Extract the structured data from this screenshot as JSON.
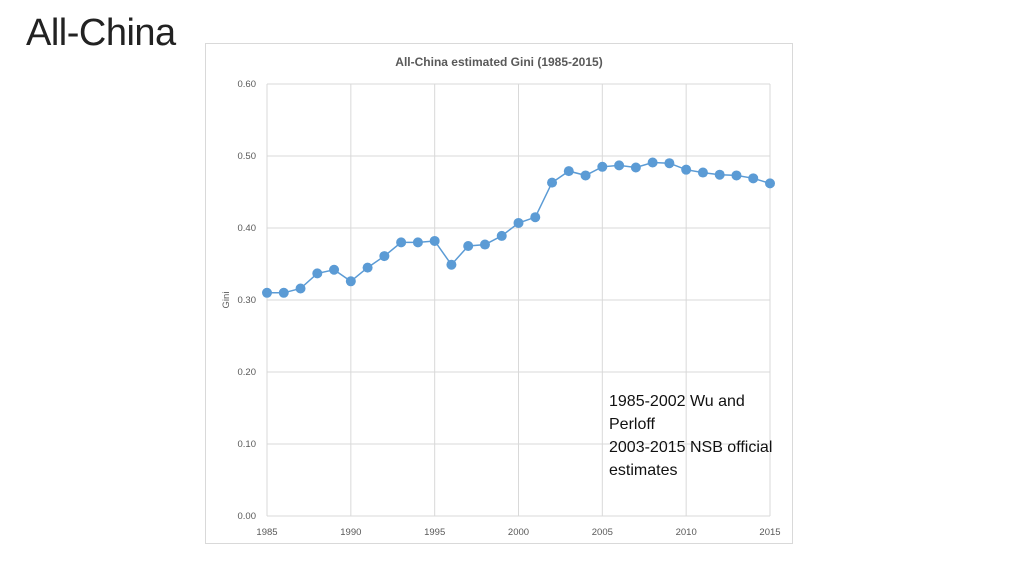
{
  "slide": {
    "title": "All-China"
  },
  "note": {
    "line1": "1985-2002 Wu and\nPerloff",
    "line2": "2003-2015 NSB official\nestimates"
  },
  "chart_data": {
    "type": "line",
    "title": "All-China estimated Gini  (1985-2015)",
    "xlabel": "",
    "ylabel": "Gini",
    "xlim": [
      1985,
      2015
    ],
    "ylim": [
      0,
      0.6
    ],
    "xticks": [
      "1985",
      "1990",
      "1995",
      "2000",
      "2005",
      "2010",
      "2015"
    ],
    "yticks": [
      "0.00",
      "0.10",
      "0.20",
      "0.30",
      "0.40",
      "0.50",
      "0.60"
    ],
    "grid": true,
    "color": "#5b9bd5",
    "series": [
      {
        "x": [
          1985,
          1986,
          1987,
          1988,
          1989,
          1990,
          1991,
          1992,
          1993,
          1994,
          1995,
          1996,
          1997,
          1998,
          1999,
          2000,
          2001,
          2002,
          2003,
          2004,
          2005,
          2006,
          2007,
          2008,
          2009,
          2010,
          2011,
          2012,
          2013,
          2014,
          2015
        ],
        "values": [
          0.31,
          0.31,
          0.316,
          0.337,
          0.342,
          0.326,
          0.345,
          0.361,
          0.38,
          0.38,
          0.382,
          0.349,
          0.375,
          0.377,
          0.389,
          0.407,
          0.415,
          0.463,
          0.479,
          0.473,
          0.485,
          0.487,
          0.484,
          0.491,
          0.49,
          0.481,
          0.477,
          0.474,
          0.473,
          0.469,
          0.462
        ]
      }
    ]
  }
}
